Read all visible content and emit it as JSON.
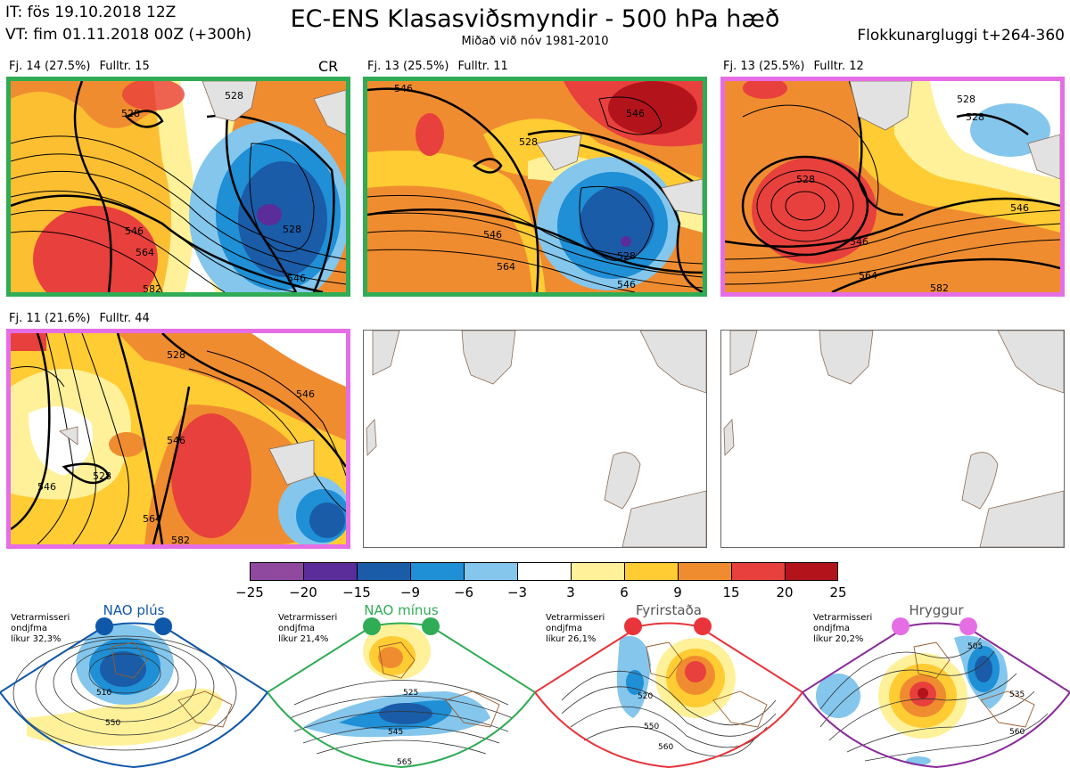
{
  "header": {
    "it_line": "IT: fös 19.10.2018 12Z",
    "vt_line": "VT: fim 01.11.2018 00Z  (+300h)",
    "title": "EC-ENS Klasasviðsmyndir - 500 hPa hæð",
    "subtitle": "Miðað við nóv 1981-2010",
    "window": "Flokkunargluggi t+264-360"
  },
  "panels": [
    {
      "count": "Fj. 14 (27.5%)",
      "rep": "Fulltr. 15",
      "tag": "CR",
      "border": "#2fac55",
      "contours": [
        "528",
        "546",
        "564",
        "528",
        "546",
        "582",
        "528"
      ]
    },
    {
      "count": "Fj. 13 (25.5%)",
      "rep": "Fulltr. 11",
      "tag": "",
      "border": "#2fac55",
      "contours": [
        "546",
        "528",
        "546",
        "546",
        "564",
        "546",
        "528"
      ]
    },
    {
      "count": "Fj. 13 (25.5%)",
      "rep": "Fulltr. 12",
      "tag": "",
      "border": "#e56ee5",
      "contours": [
        "528",
        "528",
        "546",
        "546",
        "564",
        "582",
        "528"
      ]
    },
    {
      "count": "Fj. 11 (21.6%)",
      "rep": "Fulltr. 44",
      "tag": "",
      "border": "#e56ee5",
      "contours": [
        "528",
        "546",
        "546",
        "528",
        "564",
        "582",
        "546"
      ]
    }
  ],
  "colorbar": {
    "ticks": [
      "−25",
      "−20",
      "−15",
      "−9",
      "−6",
      "−3",
      "3",
      "6",
      "9",
      "15",
      "20",
      "25"
    ],
    "colors": [
      "#8f4a9f",
      "#5a2d9b",
      "#1a5ca8",
      "#1f8fd6",
      "#84c6ec",
      "#ffffff",
      "#fff19a",
      "#ffcc33",
      "#f08c30",
      "#e8403c",
      "#b3141c"
    ]
  },
  "regimes": [
    {
      "name": "NAO plús",
      "info": [
        "Vetrarmisseri",
        "ondjfma",
        "líkur 32,3%"
      ],
      "color": "#0f57a8",
      "labels": [
        "510",
        "550"
      ]
    },
    {
      "name": "NAO mínus",
      "info": [
        "Vetrarmisseri",
        "ondjfma",
        "líkur 21,4%"
      ],
      "color": "#2fac55",
      "labels": [
        "525",
        "545",
        "565"
      ]
    },
    {
      "name": "Fyrirstaða",
      "info": [
        "Vetrarmisseri",
        "ondjfma",
        "líkur 26,1%"
      ],
      "color": "#e8343a",
      "labels": [
        "520",
        "550",
        "560"
      ]
    },
    {
      "name": "Hryggur",
      "info": [
        "Vetrarmisseri",
        "ondjfma",
        "líkur 20,2%"
      ],
      "color": "#e56ee5",
      "labels": [
        "505",
        "535",
        "560"
      ]
    }
  ]
}
